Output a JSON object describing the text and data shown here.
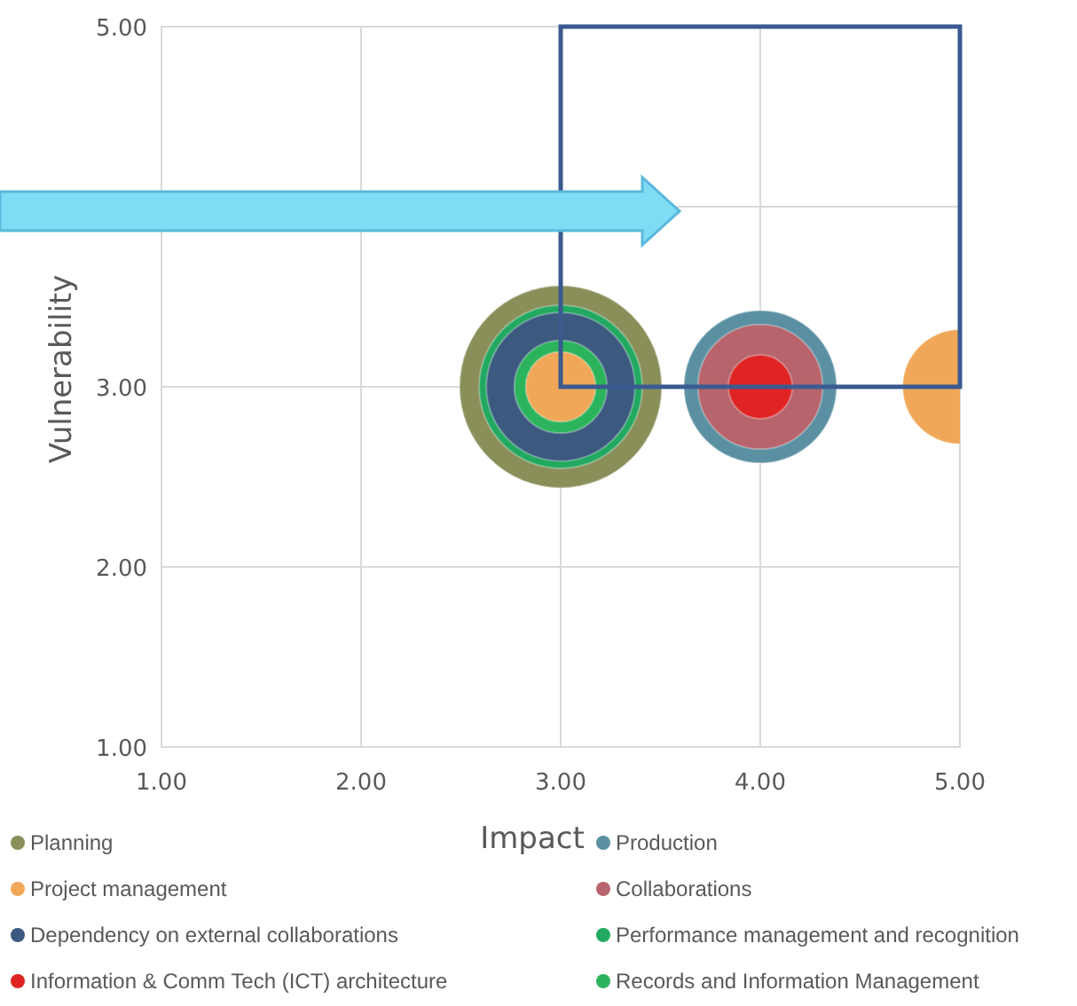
{
  "chart_data": {
    "type": "bubble",
    "xlabel": "Impact",
    "ylabel": "Vulnerability",
    "xlim": [
      1,
      5
    ],
    "ylim": [
      1,
      5
    ],
    "xticks": [
      {
        "value": 1,
        "label": "1.00"
      },
      {
        "value": 2,
        "label": "2.00"
      },
      {
        "value": 3,
        "label": "3.00"
      },
      {
        "value": 4,
        "label": "4.00"
      },
      {
        "value": 5,
        "label": "5.00"
      }
    ],
    "yticks": [
      {
        "value": 1,
        "label": "1.00"
      },
      {
        "value": 2,
        "label": "2.00"
      },
      {
        "value": 3,
        "label": "3.00"
      },
      {
        "value": 4,
        "label": null
      },
      {
        "value": 5,
        "label": "5.00"
      }
    ],
    "grid": true,
    "legend": "bottom",
    "series": [
      {
        "name": "Planning",
        "color": "#8a8f5a",
        "x": [
          3
        ],
        "values": [
          3
        ],
        "sizes": [
          1
        ]
      },
      {
        "name": "Production",
        "color": "#5a90a2",
        "x": [
          4
        ],
        "values": [
          3
        ],
        "sizes": [
          0.57
        ]
      },
      {
        "name": "Project management",
        "color": "#f0a858",
        "x": [
          3,
          5
        ],
        "values": [
          3,
          3
        ],
        "sizes": [
          0.12,
          0.32
        ]
      },
      {
        "name": "Collaborations",
        "color": "#b8646c",
        "x": [
          4
        ],
        "values": [
          3
        ],
        "sizes": [
          0.38
        ]
      },
      {
        "name": "Dependency on external collaborations",
        "color": "#3c5a80",
        "x": [
          3
        ],
        "values": [
          3
        ],
        "sizes": [
          0.54
        ]
      },
      {
        "name": "Performance management and recognition",
        "color": "#22a860",
        "x": [
          3
        ],
        "values": [
          3
        ],
        "sizes": [
          0.65
        ]
      },
      {
        "name": "Information & Comm Tech (ICT) architecture",
        "color": "#e02424",
        "x": [
          4
        ],
        "values": [
          3
        ],
        "sizes": [
          0.1
        ]
      },
      {
        "name": "Records and Information Management",
        "color": "#2cb45c",
        "x": [
          3
        ],
        "values": [
          3
        ],
        "sizes": [
          0.21
        ]
      }
    ]
  }
}
